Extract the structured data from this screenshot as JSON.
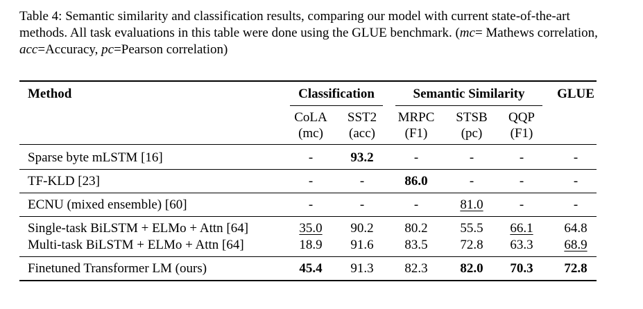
{
  "caption": [
    "Table 4: Semantic similarity and classification results, comparing our model with current state-of-the-art methods. All task evaluations in this table were done using the GLUE benchmark. (",
    "mc",
    "= Mathews correlation, ",
    "acc",
    "=Accuracy, ",
    "pc",
    "=Pearson correlation)"
  ],
  "table": {
    "method_header": "Method",
    "groups": [
      {
        "name": "Classification",
        "columns": [
          {
            "name": "CoLA",
            "metric": "(mc)"
          },
          {
            "name": "SST2",
            "metric": "(acc)"
          }
        ]
      },
      {
        "name": "Semantic Similarity",
        "columns": [
          {
            "name": "MRPC",
            "metric": "(F1)"
          },
          {
            "name": "STSB",
            "metric": "(pc)"
          },
          {
            "name": "QQP",
            "metric": "(F1)"
          }
        ]
      },
      {
        "name": "GLUE",
        "columns": []
      }
    ],
    "body": [
      [
        {
          "method": "Sparse byte mLSTM [16]",
          "cells": [
            {
              "text": "-"
            },
            {
              "text": "93.2",
              "bold": true
            },
            {
              "text": "-"
            },
            {
              "text": "-"
            },
            {
              "text": "-"
            },
            {
              "text": "-"
            }
          ]
        }
      ],
      [
        {
          "method": "TF-KLD [23]",
          "cells": [
            {
              "text": "-"
            },
            {
              "text": "-"
            },
            {
              "text": "86.0",
              "bold": true
            },
            {
              "text": "-"
            },
            {
              "text": "-"
            },
            {
              "text": "-"
            }
          ]
        }
      ],
      [
        {
          "method": "ECNU (mixed ensemble) [60]",
          "cells": [
            {
              "text": "-"
            },
            {
              "text": "-"
            },
            {
              "text": "-"
            },
            {
              "text": "81.0",
              "underline": true
            },
            {
              "text": "-"
            },
            {
              "text": "-"
            }
          ]
        }
      ],
      [
        {
          "method": "Single-task BiLSTM + ELMo + Attn [64]",
          "cells": [
            {
              "text": "35.0",
              "underline": true
            },
            {
              "text": "90.2"
            },
            {
              "text": "80.2"
            },
            {
              "text": "55.5"
            },
            {
              "text": "66.1",
              "underline": true
            },
            {
              "text": "64.8"
            }
          ]
        },
        {
          "method": "Multi-task BiLSTM + ELMo + Attn [64]",
          "cells": [
            {
              "text": "18.9"
            },
            {
              "text": "91.6"
            },
            {
              "text": "83.5"
            },
            {
              "text": "72.8"
            },
            {
              "text": "63.3"
            },
            {
              "text": "68.9",
              "underline": true
            }
          ]
        }
      ],
      [
        {
          "method": "Finetuned Transformer LM (ours)",
          "cells": [
            {
              "text": "45.4",
              "bold": true
            },
            {
              "text": "91.3"
            },
            {
              "text": "82.3"
            },
            {
              "text": "82.0",
              "bold": true
            },
            {
              "text": "70.3",
              "bold": true
            },
            {
              "text": "72.8",
              "bold": true
            }
          ]
        }
      ]
    ]
  }
}
